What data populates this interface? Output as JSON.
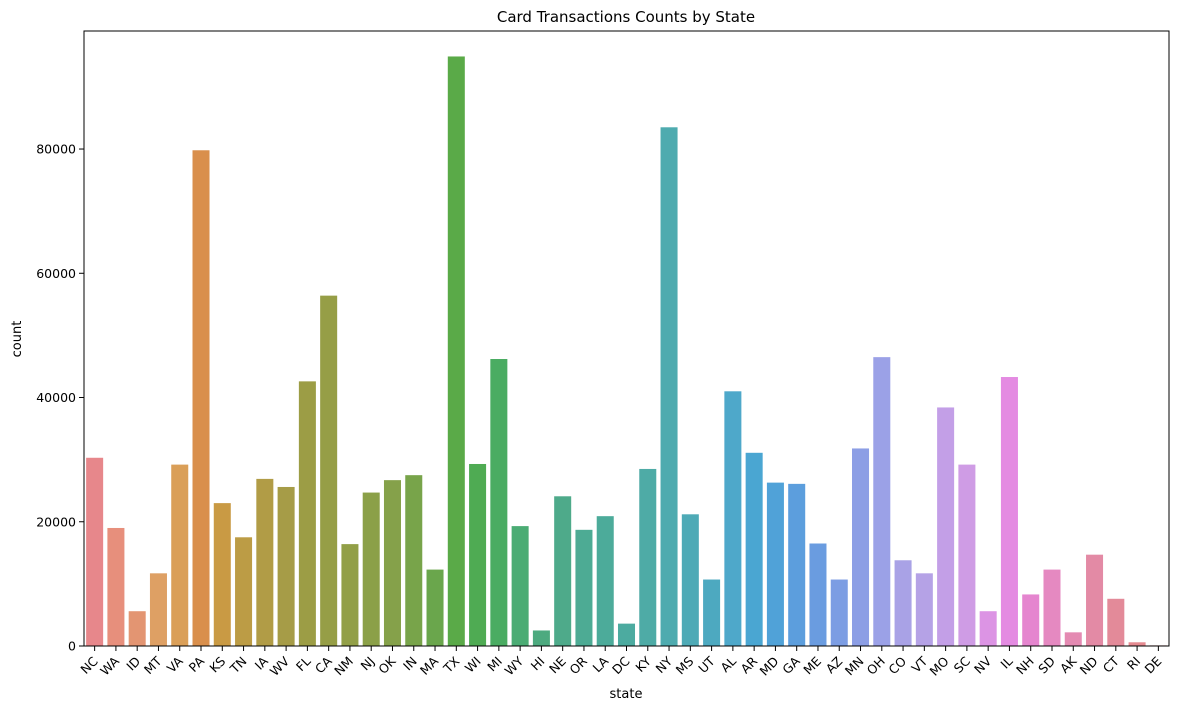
{
  "chart_data": {
    "type": "bar",
    "title": "Card Transactions Counts by State",
    "xlabel": "state",
    "ylabel": "count",
    "ylim": [
      0,
      99000
    ],
    "yticks": [
      0,
      20000,
      40000,
      60000,
      80000
    ],
    "grid": false,
    "categories": [
      "NC",
      "WA",
      "ID",
      "MT",
      "VA",
      "PA",
      "KS",
      "TN",
      "IA",
      "WV",
      "FL",
      "CA",
      "NM",
      "NJ",
      "OK",
      "IN",
      "MA",
      "TX",
      "WI",
      "MI",
      "WY",
      "HI",
      "NE",
      "OR",
      "LA",
      "DC",
      "KY",
      "NY",
      "MS",
      "UT",
      "AL",
      "AR",
      "MD",
      "GA",
      "ME",
      "AZ",
      "MN",
      "OH",
      "CO",
      "VT",
      "MO",
      "SC",
      "NV",
      "IL",
      "NH",
      "SD",
      "AK",
      "ND",
      "CT",
      "RI",
      "DE"
    ],
    "values": [
      30300,
      19000,
      5600,
      11700,
      29200,
      79800,
      23000,
      17500,
      26900,
      25600,
      42600,
      56400,
      16400,
      24700,
      26700,
      27500,
      12300,
      94900,
      29300,
      46200,
      19300,
      2500,
      24100,
      18700,
      20900,
      3600,
      28500,
      83500,
      21200,
      10700,
      41000,
      31100,
      26300,
      26100,
      16500,
      10700,
      31800,
      46500,
      13800,
      11700,
      38400,
      29200,
      5600,
      43300,
      8300,
      12300,
      2200,
      14700,
      7600,
      600,
      100
    ],
    "colors": [
      "#e7878b",
      "#e78f7c",
      "#e39572",
      "#dea064",
      "#da9f58",
      "#d98f4c",
      "#c99a44",
      "#bc9c45",
      "#b19c46",
      "#a69c47",
      "#9c9d45",
      "#969e46",
      "#929f47",
      "#8ba048",
      "#85a14a",
      "#78a44a",
      "#6aa64c",
      "#5aaa48",
      "#4fab53",
      "#4aac62",
      "#4bac74",
      "#4daa7f",
      "#4eaa8a",
      "#4dab94",
      "#4cab9a",
      "#4caba0",
      "#4eaba6",
      "#4eabaf",
      "#4eaab6",
      "#4da9c0",
      "#4ea8ca",
      "#4aa6d2",
      "#50a2d8",
      "#5c9edd",
      "#6a9ce0",
      "#7c9de3",
      "#8c9ee5",
      "#9ba1e7",
      "#a9a2e6",
      "#b5a2e6",
      "#c39fe7",
      "#cf9ce5",
      "#dc94e4",
      "#e48be2",
      "#e585cf",
      "#e589c1",
      "#e48ab2",
      "#e38aa5",
      "#e38a99",
      "#e58a90",
      "#e78a8a"
    ]
  }
}
